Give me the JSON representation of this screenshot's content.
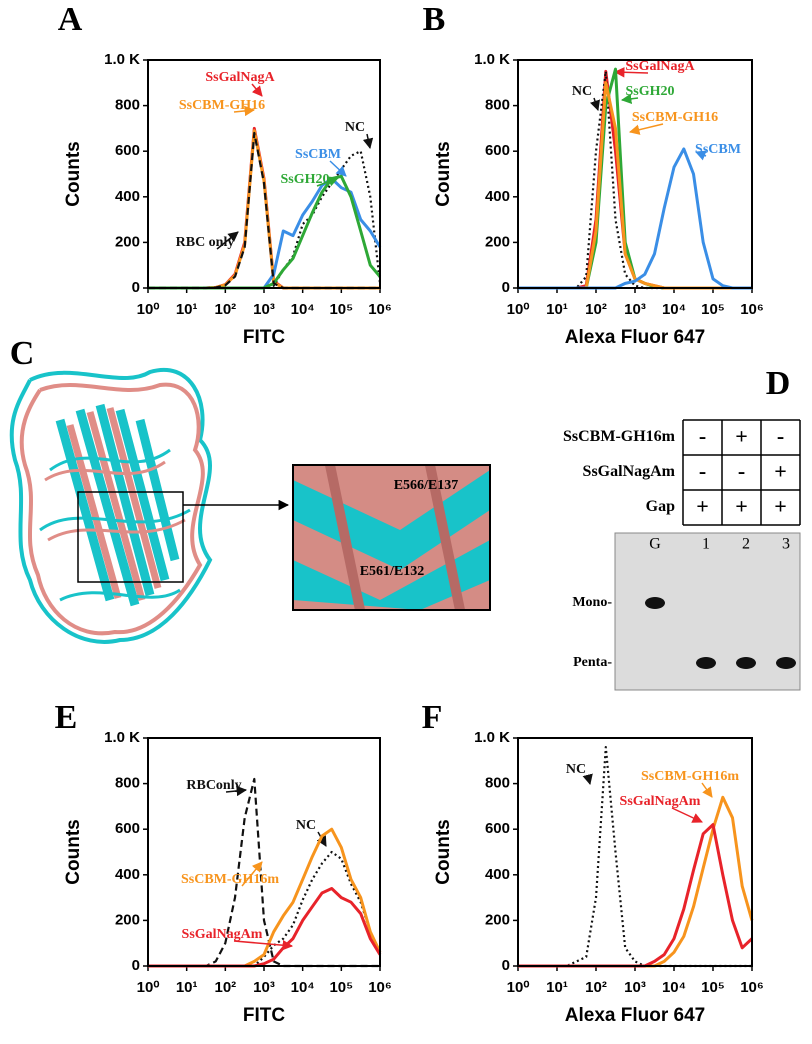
{
  "panel_labels": [
    "A",
    "B",
    "C",
    "D",
    "E",
    "F"
  ],
  "chart_data": [
    {
      "type": "line",
      "x_label": "FITC",
      "y_label": "Counts",
      "xscale": "log",
      "xlim": [
        1,
        1000000
      ],
      "ylim": [
        0,
        1000
      ],
      "xticks": [
        {
          "value": 1,
          "label": "10⁰"
        },
        {
          "value": 10,
          "label": "10¹"
        },
        {
          "value": 100,
          "label": "10²"
        },
        {
          "value": 1000,
          "label": "10³"
        },
        {
          "value": 10000,
          "label": "10⁴"
        },
        {
          "value": 100000,
          "label": "10⁵"
        },
        {
          "value": 1000000,
          "label": "10⁶"
        }
      ],
      "yticks": [
        0,
        200,
        400,
        600,
        800,
        {
          "value": 1000,
          "label": "1.0 K"
        }
      ],
      "x": [
        1,
        1.78,
        3.16,
        5.62,
        10,
        17.8,
        31.6,
        56.2,
        100,
        178,
        316,
        562,
        1000,
        1780,
        3160,
        5620,
        10000,
        17800,
        31600,
        56200,
        100000,
        178000,
        316000,
        562000,
        1000000
      ],
      "series": [
        {
          "name": "SsGalNagA",
          "color": "#e8232a",
          "dash": "solid",
          "values": [
            0,
            0,
            0,
            0,
            0,
            0,
            0,
            2,
            15,
            60,
            200,
            700,
            480,
            30,
            0,
            0,
            0,
            0,
            0,
            0,
            0,
            0,
            0,
            0,
            0
          ]
        },
        {
          "name": "SsCBM-GH16",
          "color": "#f7941d",
          "dash": "solid",
          "values": [
            0,
            0,
            0,
            0,
            0,
            0,
            0,
            2,
            14,
            55,
            190,
            690,
            470,
            25,
            0,
            0,
            0,
            0,
            0,
            0,
            0,
            0,
            0,
            0,
            0
          ]
        },
        {
          "name": "NC",
          "color": "#111111",
          "dash": "dotted",
          "values": [
            0,
            0,
            0,
            0,
            0,
            0,
            0,
            0,
            0,
            0,
            0,
            0,
            0,
            10,
            80,
            140,
            280,
            320,
            400,
            460,
            520,
            580,
            600,
            400,
            20
          ]
        },
        {
          "name": "SsCBM",
          "color": "#3a8ee6",
          "dash": "solid",
          "values": [
            0,
            0,
            0,
            0,
            0,
            0,
            0,
            0,
            0,
            0,
            0,
            0,
            0,
            60,
            250,
            230,
            320,
            380,
            450,
            480,
            440,
            420,
            300,
            250,
            180
          ]
        },
        {
          "name": "SsGH20",
          "color": "#2ea836",
          "dash": "solid",
          "values": [
            0,
            0,
            0,
            0,
            0,
            0,
            0,
            0,
            0,
            0,
            0,
            0,
            0,
            20,
            80,
            130,
            230,
            330,
            420,
            480,
            490,
            400,
            250,
            100,
            50
          ]
        },
        {
          "name": "RBC only",
          "color": "#111111",
          "dash": "dashed",
          "values": [
            0,
            0,
            0,
            0,
            0,
            0,
            0,
            2,
            12,
            50,
            180,
            680,
            460,
            20,
            0,
            0,
            0,
            0,
            0,
            0,
            0,
            0,
            0,
            0,
            0
          ]
        }
      ]
    },
    {
      "type": "line",
      "x_label": "Alexa Fluor 647",
      "y_label": "Counts",
      "xscale": "log",
      "xlim": [
        1,
        1000000
      ],
      "ylim": [
        0,
        1000
      ],
      "xticks": [
        {
          "value": 1,
          "label": "10⁰"
        },
        {
          "value": 10,
          "label": "10¹"
        },
        {
          "value": 100,
          "label": "10²"
        },
        {
          "value": 1000,
          "label": "10³"
        },
        {
          "value": 10000,
          "label": "10⁴"
        },
        {
          "value": 100000,
          "label": "10⁵"
        },
        {
          "value": 1000000,
          "label": "10⁶"
        }
      ],
      "yticks": [
        0,
        200,
        400,
        600,
        800,
        {
          "value": 1000,
          "label": "1.0 K"
        }
      ],
      "x": [
        1,
        1.78,
        3.16,
        5.62,
        10,
        17.8,
        31.6,
        56.2,
        100,
        178,
        316,
        562,
        1000,
        1780,
        3160,
        5620,
        10000,
        17800,
        31600,
        56200,
        100000,
        178000,
        316000,
        562000,
        1000000
      ],
      "series": [
        {
          "name": "SsGalNagA",
          "color": "#e8232a",
          "dash": "solid",
          "values": [
            0,
            0,
            0,
            0,
            0,
            0,
            0,
            10,
            300,
            950,
            600,
            150,
            40,
            20,
            10,
            0,
            0,
            0,
            0,
            0,
            0,
            0,
            0,
            0,
            0
          ]
        },
        {
          "name": "NC",
          "color": "#111111",
          "dash": "dotted",
          "values": [
            0,
            0,
            0,
            0,
            0,
            0,
            0,
            50,
            600,
            950,
            300,
            60,
            10,
            0,
            0,
            0,
            0,
            0,
            0,
            0,
            0,
            0,
            0,
            0,
            0
          ]
        },
        {
          "name": "SsGH20",
          "color": "#2ea836",
          "dash": "solid",
          "values": [
            0,
            0,
            0,
            0,
            0,
            0,
            0,
            0,
            200,
            800,
            960,
            200,
            40,
            20,
            5,
            0,
            0,
            0,
            0,
            0,
            0,
            0,
            0,
            0,
            0
          ]
        },
        {
          "name": "SsCBM-GH16",
          "color": "#f7941d",
          "dash": "solid",
          "values": [
            0,
            0,
            0,
            0,
            0,
            0,
            0,
            0,
            250,
            900,
            700,
            150,
            40,
            20,
            10,
            0,
            0,
            0,
            0,
            0,
            0,
            0,
            0,
            0,
            0
          ]
        },
        {
          "name": "SsCBM",
          "color": "#3a8ee6",
          "dash": "solid",
          "values": [
            0,
            0,
            0,
            0,
            0,
            0,
            0,
            0,
            0,
            0,
            0,
            20,
            30,
            60,
            150,
            350,
            530,
            610,
            500,
            200,
            40,
            10,
            0,
            0,
            0
          ]
        }
      ]
    },
    {
      "type": "line",
      "x_label": "FITC",
      "y_label": "Counts",
      "xscale": "log",
      "xlim": [
        1,
        1000000
      ],
      "ylim": [
        0,
        1000
      ],
      "xticks": [
        {
          "value": 1,
          "label": "10⁰"
        },
        {
          "value": 10,
          "label": "10¹"
        },
        {
          "value": 100,
          "label": "10²"
        },
        {
          "value": 1000,
          "label": "10³"
        },
        {
          "value": 10000,
          "label": "10⁴"
        },
        {
          "value": 100000,
          "label": "10⁵"
        },
        {
          "value": 1000000,
          "label": "10⁶"
        }
      ],
      "yticks": [
        0,
        200,
        400,
        600,
        800,
        {
          "value": 1000,
          "label": "1.0 K"
        }
      ],
      "x": [
        1,
        1.78,
        3.16,
        5.62,
        10,
        17.8,
        31.6,
        56.2,
        100,
        178,
        316,
        562,
        1000,
        1780,
        3160,
        5620,
        10000,
        17800,
        31600,
        56200,
        100000,
        178000,
        316000,
        562000,
        1000000
      ],
      "series": [
        {
          "name": "RBConly",
          "color": "#111111",
          "dash": "dashed",
          "values": [
            0,
            0,
            0,
            0,
            0,
            0,
            0,
            20,
            100,
            300,
            650,
            820,
            200,
            20,
            0,
            0,
            0,
            0,
            0,
            0,
            0,
            0,
            0,
            0,
            0
          ]
        },
        {
          "name": "NC",
          "color": "#111111",
          "dash": "dotted",
          "values": [
            0,
            0,
            0,
            0,
            0,
            0,
            0,
            0,
            0,
            0,
            0,
            0,
            40,
            90,
            120,
            180,
            290,
            380,
            450,
            500,
            470,
            360,
            280,
            150,
            60
          ]
        },
        {
          "name": "SsCBM-GH16m",
          "color": "#f7941d",
          "dash": "solid",
          "values": [
            0,
            0,
            0,
            0,
            0,
            0,
            0,
            0,
            0,
            0,
            0,
            20,
            50,
            150,
            220,
            280,
            380,
            480,
            570,
            600,
            520,
            380,
            300,
            150,
            60
          ]
        },
        {
          "name": "SsGalNagAm",
          "color": "#e8232a",
          "dash": "solid",
          "values": [
            0,
            0,
            0,
            0,
            0,
            0,
            0,
            0,
            0,
            0,
            0,
            0,
            10,
            30,
            80,
            120,
            200,
            260,
            320,
            340,
            300,
            280,
            230,
            120,
            50
          ]
        }
      ]
    },
    {
      "type": "line",
      "x_label": "Alexa Fluor 647",
      "y_label": "Counts",
      "xscale": "log",
      "xlim": [
        1,
        1000000
      ],
      "ylim": [
        0,
        1000
      ],
      "xticks": [
        {
          "value": 1,
          "label": "10⁰"
        },
        {
          "value": 10,
          "label": "10¹"
        },
        {
          "value": 100,
          "label": "10²"
        },
        {
          "value": 1000,
          "label": "10³"
        },
        {
          "value": 10000,
          "label": "10⁴"
        },
        {
          "value": 100000,
          "label": "10⁵"
        },
        {
          "value": 1000000,
          "label": "10⁶"
        }
      ],
      "yticks": [
        0,
        200,
        400,
        600,
        800,
        {
          "value": 1000,
          "label": "1.0 K"
        }
      ],
      "x": [
        1,
        1.78,
        3.16,
        5.62,
        10,
        17.8,
        31.6,
        56.2,
        100,
        178,
        316,
        562,
        1000,
        1780,
        3160,
        5620,
        10000,
        17800,
        31600,
        56200,
        100000,
        178000,
        316000,
        562000,
        1000000
      ],
      "series": [
        {
          "name": "NC",
          "color": "#111111",
          "dash": "dotted",
          "values": [
            0,
            0,
            0,
            0,
            0,
            0,
            20,
            40,
            300,
            960,
            500,
            80,
            20,
            0,
            0,
            0,
            0,
            0,
            0,
            0,
            0,
            0,
            0,
            0,
            0
          ]
        },
        {
          "name": "SsCBM-GH16m",
          "color": "#f7941d",
          "dash": "solid",
          "values": [
            0,
            0,
            0,
            0,
            0,
            0,
            0,
            0,
            0,
            0,
            0,
            0,
            0,
            0,
            0,
            20,
            60,
            130,
            260,
            430,
            600,
            740,
            650,
            350,
            200
          ]
        },
        {
          "name": "SsGalNagAm",
          "color": "#e8232a",
          "dash": "solid",
          "values": [
            0,
            0,
            0,
            0,
            0,
            0,
            0,
            0,
            0,
            0,
            0,
            0,
            0,
            0,
            20,
            50,
            120,
            250,
            420,
            580,
            620,
            400,
            200,
            80,
            120
          ]
        }
      ]
    }
  ],
  "structure": {
    "residues": [
      "E566/E137",
      "E561/E132"
    ]
  },
  "gel_table": {
    "row_labels": [
      "SsCBM-GH16m",
      "SsGalNagAm",
      "Gap"
    ],
    "cells": [
      [
        "-",
        "+",
        "-"
      ],
      [
        "-",
        "-",
        "+"
      ],
      [
        "+",
        "+",
        "+"
      ]
    ],
    "lanes": [
      "G",
      "1",
      "2",
      "3"
    ],
    "bands": [
      "Mono-",
      "Penta-"
    ]
  }
}
